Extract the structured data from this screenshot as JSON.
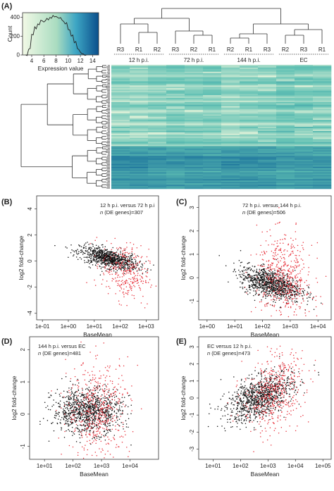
{
  "panels": {
    "A": "(A)",
    "B": "(B)",
    "C": "(C)",
    "D": "(D)",
    "E": "(E)"
  },
  "colors": {
    "de_points": "#e8323c",
    "other_points": "#111111",
    "heat_low": "#ecf6dc",
    "heat_mid": "#5fc0b3",
    "heat_high": "#0b5f96"
  },
  "chart_data": [
    {
      "id": "A-histogram",
      "type": "area",
      "xlabel": "Expression value",
      "ylabel": "Count",
      "xticks": [
        4,
        6,
        8,
        10,
        12,
        14
      ],
      "yticks": [
        0,
        200,
        400
      ],
      "xlim": [
        2.5,
        15
      ],
      "ylim": [
        0,
        450
      ],
      "x": [
        3,
        3.5,
        4,
        4.5,
        5,
        5.5,
        6,
        6.5,
        7,
        7.5,
        8,
        8.5,
        9,
        9.5,
        10,
        10.5,
        11,
        11.5,
        12,
        12.5,
        13
      ],
      "y": [
        0,
        60,
        220,
        300,
        330,
        370,
        350,
        390,
        400,
        420,
        410,
        390,
        370,
        330,
        270,
        200,
        130,
        70,
        30,
        10,
        0
      ]
    },
    {
      "id": "A-heatmap",
      "type": "heatmap",
      "column_labels": [
        "R3",
        "R1",
        "R2",
        "R3",
        "R2",
        "R1",
        "R2",
        "R1",
        "R3",
        "R2",
        "R3",
        "R1"
      ],
      "groups": [
        "12 h p.i.",
        "72 h p.i.",
        "144 h p.i.",
        "EC"
      ]
    },
    {
      "id": "B",
      "type": "scatter",
      "title": "12 h p.i. versus 72 h p.i",
      "n_prefix": "n",
      "n_suffix": " (DE genes)=307",
      "de_genes": 307,
      "xlabel": "BaseMean",
      "ylabel": "log2 fold-change",
      "log_x": true,
      "xlim": [
        0.06,
        3000
      ],
      "ylim": [
        -4.5,
        5
      ],
      "xticks": [
        0.1,
        1,
        10,
        100,
        1000
      ],
      "xtick_labels": [
        "1e-01",
        "1e+00",
        "1e+01",
        "1e+02",
        "1e+03"
      ],
      "yticks": [
        -4,
        -2,
        0,
        2,
        4
      ],
      "series": [
        {
          "lx_mean": 1.55,
          "lx_sd": 0.55,
          "y_intercept": 0.9,
          "y_slope": -0.45,
          "y_sd": 0.35,
          "count": 900
        },
        {
          "lx_mean": 2.2,
          "lx_sd": 0.45,
          "y_intercept": 0.4,
          "y_slope": -0.55,
          "y_sd": 1.1,
          "count": 307
        }
      ]
    },
    {
      "id": "C",
      "type": "scatter",
      "title": "72 h p.i. versus 144 h p.i.",
      "n_prefix": "n",
      "n_suffix": " (DE genes)=506",
      "de_genes": 506,
      "xlabel": "BaseMean",
      "ylabel": "log2 fold-change",
      "log_x": true,
      "xlim": [
        0.5,
        30000
      ],
      "ylim": [
        -1.8,
        3.5
      ],
      "xticks": [
        1,
        10,
        100,
        1000,
        10000
      ],
      "xtick_labels": [
        "1e+00",
        "1e+01",
        "1e+02",
        "1e+03",
        "1e+04"
      ],
      "yticks": [
        -1,
        0,
        1,
        2,
        3
      ],
      "series": [
        {
          "lx_mean": 2.3,
          "lx_sd": 0.55,
          "y_intercept": 0.45,
          "y_slope": -0.3,
          "y_sd": 0.3,
          "count": 1000
        },
        {
          "lx_mean": 2.8,
          "lx_sd": 0.5,
          "y_intercept": 0.8,
          "y_slope": -0.3,
          "y_sd": 0.9,
          "count": 506
        }
      ]
    },
    {
      "id": "D",
      "type": "scatter",
      "title": "144 h p.i. versus EC",
      "n_prefix": "n",
      "n_suffix": " (DE genes)=481",
      "de_genes": 481,
      "xlabel": "BaseMean",
      "ylabel": "log2 fold-change",
      "log_x": true,
      "xlim": [
        3,
        100000
      ],
      "ylim": [
        -1.4,
        2.4
      ],
      "xticks": [
        10,
        100,
        1000,
        10000
      ],
      "xtick_labels": [
        "1e+01",
        "1e+02",
        "1e+03",
        "1e+04"
      ],
      "yticks": [
        -1,
        0,
        1,
        2
      ],
      "series": [
        {
          "lx_mean": 2.5,
          "lx_sd": 0.6,
          "y_intercept": 0.1,
          "y_slope": 0.0,
          "y_sd": 0.35,
          "count": 1000
        },
        {
          "lx_mean": 2.9,
          "lx_sd": 0.55,
          "y_intercept": 0.0,
          "y_slope": 0.05,
          "y_sd": 0.75,
          "count": 481
        }
      ]
    },
    {
      "id": "E",
      "type": "scatter",
      "title": "EC versus 12 h p.i.",
      "n_prefix": "n",
      "n_suffix": " (DE genes)=473",
      "de_genes": 473,
      "xlabel": "BaseMean",
      "ylabel": "log2 fold-change",
      "log_x": true,
      "xlim": [
        3,
        200000
      ],
      "ylim": [
        -3.6,
        3.6
      ],
      "xticks": [
        10,
        100,
        1000,
        10000,
        100000
      ],
      "xtick_labels": [
        "1e+01",
        "1e+02",
        "1e+03",
        "1e+04",
        "1e+05"
      ],
      "yticks": [
        -3,
        -2,
        -1,
        0,
        1,
        2,
        3
      ],
      "series": [
        {
          "lx_mean": 2.7,
          "lx_sd": 0.6,
          "y_intercept": -1.6,
          "y_slope": 0.6,
          "y_sd": 0.6,
          "count": 1000
        },
        {
          "lx_mean": 3.2,
          "lx_sd": 0.55,
          "y_intercept": -1.6,
          "y_slope": 0.6,
          "y_sd": 1.1,
          "count": 473
        }
      ]
    }
  ]
}
